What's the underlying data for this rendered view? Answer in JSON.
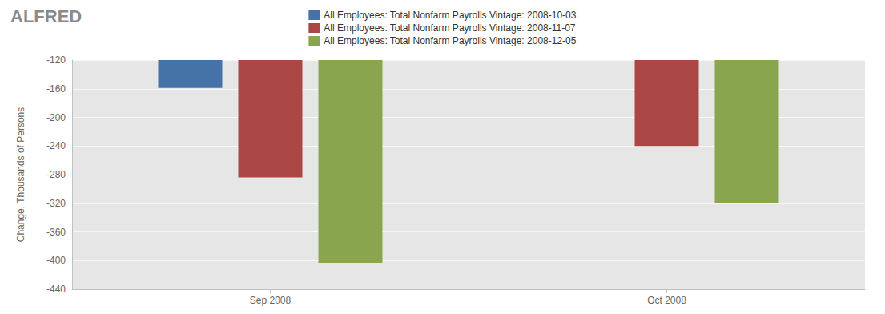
{
  "chart_data": {
    "type": "bar",
    "title": "ALFRED",
    "y_label": "Change, Thousands of Persons",
    "categories": [
      "Sep 2008",
      "Oct 2008"
    ],
    "series": [
      {
        "name": "All Employees: Total Nonfarm Payrolls Vintage: 2008-10-03",
        "color": "#4572a7",
        "values": [
          -159,
          null
        ]
      },
      {
        "name": "All Employees: Total Nonfarm Payrolls Vintage: 2008-11-07",
        "color": "#aa4643",
        "values": [
          -284,
          -240
        ]
      },
      {
        "name": "All Employees: Total Nonfarm Payrolls Vintage: 2008-12-05",
        "color": "#89a54e",
        "values": [
          -403,
          -320
        ]
      }
    ],
    "ylim": [
      -440,
      -120
    ],
    "yticks": [
      -440,
      -400,
      -360,
      -320,
      -280,
      -240,
      -200,
      -160,
      -120
    ],
    "grid": true,
    "legend": "top"
  }
}
